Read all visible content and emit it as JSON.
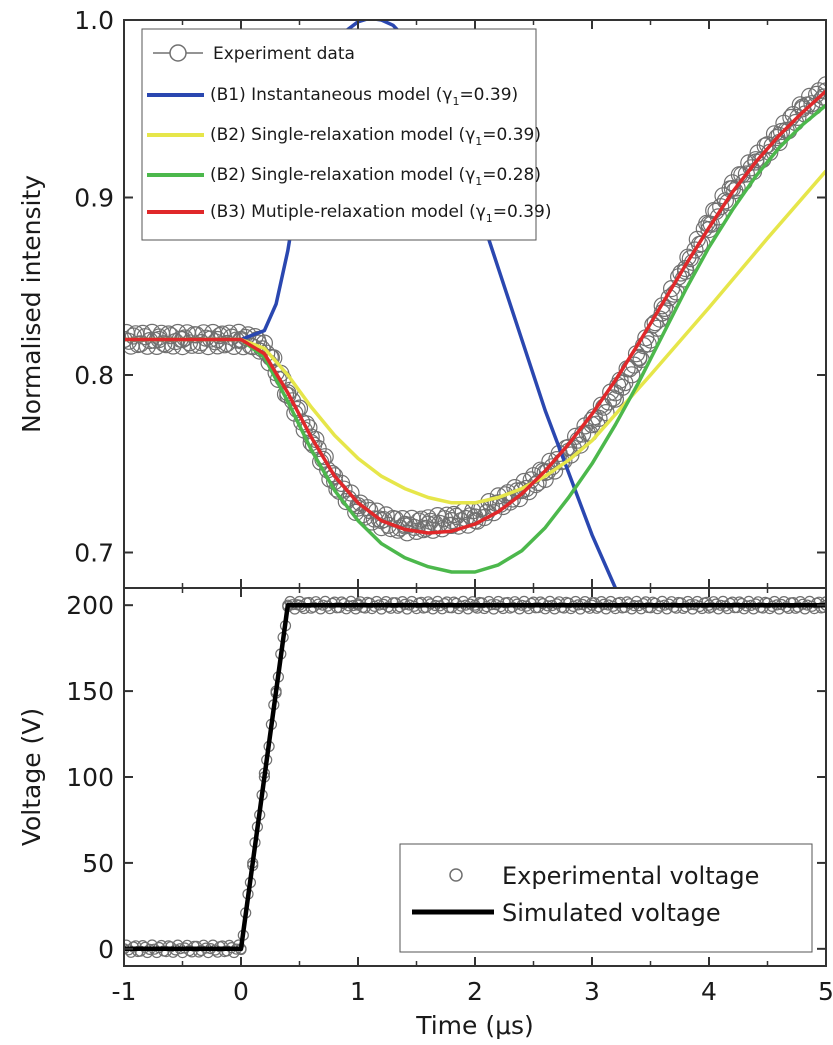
{
  "chart_data": [
    {
      "type": "line",
      "ylabel": "Normalised intensity",
      "xlim": [
        -1,
        5
      ],
      "ylim": [
        0.68,
        1.0
      ],
      "yticks": [
        "0.7",
        "0.8",
        "0.9",
        "1.0"
      ],
      "yticks_values": [
        0.7,
        0.8,
        0.9,
        1.0
      ],
      "legend_placement": "top-left",
      "legend": {
        "experiment": "Experiment data",
        "b1": {
          "prefix": "(B1) Instantaneous model (",
          "gamma": "γ",
          "sub": "1",
          "suffix": "=0.39)"
        },
        "b2a": {
          "prefix": "(B2) Single-relaxation model (",
          "gamma": "γ",
          "sub": "1",
          "suffix": "=0.39)"
        },
        "b2b": {
          "prefix": "(B2) Single-relaxation model (",
          "gamma": "γ",
          "sub": "1",
          "suffix": "=0.28)"
        },
        "b3": {
          "prefix": "(B3) Mutiple-relaxation model (",
          "gamma": "γ",
          "sub": "1",
          "suffix": "=0.39)"
        }
      },
      "series": [
        {
          "name": "Experiment data",
          "style": "open-circles",
          "color": "#707070",
          "x": [
            -1.0,
            -0.7,
            -0.5,
            -0.2,
            0.0,
            0.15,
            0.25,
            0.4,
            0.6,
            0.8,
            1.0,
            1.2,
            1.4,
            1.6,
            1.8,
            2.0,
            2.2,
            2.4,
            2.6,
            2.8,
            3.0,
            3.2,
            3.4,
            3.6,
            3.8,
            4.0,
            4.2,
            4.4,
            4.6,
            4.8,
            5.0
          ],
          "y": [
            0.82,
            0.82,
            0.82,
            0.82,
            0.82,
            0.818,
            0.81,
            0.79,
            0.765,
            0.74,
            0.725,
            0.718,
            0.715,
            0.716,
            0.718,
            0.72,
            0.728,
            0.735,
            0.745,
            0.757,
            0.772,
            0.79,
            0.81,
            0.835,
            0.86,
            0.885,
            0.905,
            0.92,
            0.935,
            0.95,
            0.96
          ]
        },
        {
          "name": "(B1) Instantaneous model (γ1=0.39)",
          "color": "#2a47b0",
          "x": [
            -1.0,
            0.0,
            0.2,
            0.3,
            0.4,
            0.5,
            0.6,
            0.7,
            0.8,
            0.9,
            1.0,
            1.1,
            1.2,
            1.3,
            1.4,
            1.5,
            1.6,
            1.8,
            2.0,
            2.2,
            2.4,
            2.6,
            2.8,
            3.0,
            3.2,
            3.3
          ],
          "y": [
            0.82,
            0.82,
            0.825,
            0.84,
            0.87,
            0.91,
            0.945,
            0.968,
            0.984,
            0.994,
            0.999,
            1.001,
            1.0,
            0.997,
            0.99,
            0.98,
            0.965,
            0.935,
            0.9,
            0.86,
            0.82,
            0.78,
            0.745,
            0.71,
            0.68,
            0.668
          ]
        },
        {
          "name": "(B2) Single-relaxation model (γ1=0.39)",
          "color": "#e6e64a",
          "x": [
            -1.0,
            0.0,
            0.2,
            0.4,
            0.6,
            0.8,
            1.0,
            1.2,
            1.4,
            1.6,
            1.8,
            2.0,
            2.2,
            2.4,
            2.6,
            2.8,
            3.0,
            3.5,
            4.0,
            4.5,
            5.0
          ],
          "y": [
            0.82,
            0.82,
            0.815,
            0.8,
            0.782,
            0.766,
            0.753,
            0.743,
            0.736,
            0.731,
            0.728,
            0.728,
            0.731,
            0.736,
            0.743,
            0.752,
            0.763,
            0.8,
            0.838,
            0.877,
            0.915
          ]
        },
        {
          "name": "(B2) Single-relaxation model (γ1=0.28)",
          "color": "#4cb84c",
          "x": [
            -1.0,
            0.0,
            0.2,
            0.4,
            0.6,
            0.8,
            1.0,
            1.2,
            1.4,
            1.6,
            1.8,
            2.0,
            2.2,
            2.4,
            2.6,
            2.8,
            3.0,
            3.2,
            3.4,
            3.6,
            3.8,
            4.0,
            4.2,
            4.4,
            4.6,
            4.8,
            5.0
          ],
          "y": [
            0.82,
            0.82,
            0.81,
            0.785,
            0.758,
            0.735,
            0.718,
            0.705,
            0.697,
            0.692,
            0.689,
            0.689,
            0.693,
            0.701,
            0.714,
            0.731,
            0.75,
            0.772,
            0.796,
            0.822,
            0.848,
            0.872,
            0.893,
            0.912,
            0.928,
            0.941,
            0.952
          ]
        },
        {
          "name": "(B3) Mutiple-relaxation model (γ1=0.39)",
          "color": "#e0282a",
          "x": [
            -1.0,
            0.0,
            0.2,
            0.4,
            0.6,
            0.8,
            1.0,
            1.2,
            1.4,
            1.6,
            1.8,
            2.0,
            2.2,
            2.4,
            2.6,
            2.8,
            3.0,
            3.2,
            3.4,
            3.6,
            3.8,
            4.0,
            4.2,
            4.4,
            4.6,
            4.8,
            5.0
          ],
          "y": [
            0.82,
            0.82,
            0.812,
            0.79,
            0.765,
            0.743,
            0.728,
            0.718,
            0.713,
            0.711,
            0.712,
            0.716,
            0.723,
            0.733,
            0.746,
            0.761,
            0.778,
            0.797,
            0.818,
            0.84,
            0.862,
            0.883,
            0.903,
            0.92,
            0.935,
            0.948,
            0.96
          ]
        }
      ]
    },
    {
      "type": "line",
      "ylabel": "Voltage (V)",
      "xlabel": "Time (μs)",
      "xlim": [
        -1,
        5
      ],
      "ylim": [
        -10,
        210
      ],
      "xticks": [
        "-1",
        "0",
        "1",
        "2",
        "3",
        "4",
        "5"
      ],
      "xticks_values": [
        -1,
        0,
        1,
        2,
        3,
        4,
        5
      ],
      "yticks": [
        "0",
        "50",
        "100",
        "150",
        "200"
      ],
      "yticks_values": [
        0,
        50,
        100,
        150,
        200
      ],
      "legend_placement": "bottom-right",
      "legend": {
        "exp": "Experimental voltage",
        "sim": "Simulated voltage"
      },
      "series": [
        {
          "name": "Experimental voltage",
          "style": "open-circles",
          "color": "#707070",
          "x": [
            -1.0,
            0.0,
            0.1,
            0.2,
            0.3,
            0.4,
            0.5,
            1.0,
            2.0,
            3.0,
            4.0,
            5.0
          ],
          "y": [
            0,
            0,
            50,
            100,
            150,
            200,
            200,
            200,
            200,
            200,
            200,
            200
          ]
        },
        {
          "name": "Simulated voltage",
          "color": "#000000",
          "x": [
            -1.0,
            0.0,
            0.4,
            5.0
          ],
          "y": [
            0,
            0,
            200,
            200
          ]
        }
      ]
    }
  ]
}
